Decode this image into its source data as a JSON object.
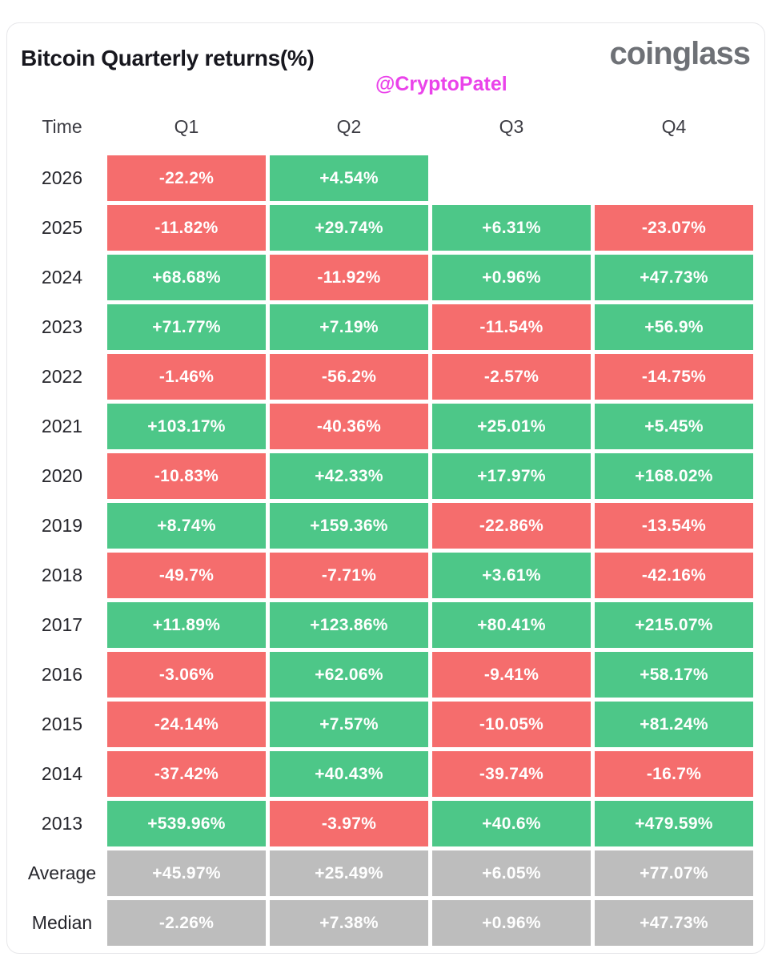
{
  "header": {
    "title": "Bitcoin Quarterly returns(%)",
    "handle": "@CryptoPatel",
    "logo": "coinglass"
  },
  "colors": {
    "positive": "#4dc788",
    "negative": "#f56d6d",
    "neutral": "#bdbdbd",
    "handle": "#ea43ea",
    "logo": "#6e7176"
  },
  "table": {
    "columns": [
      "Time",
      "Q1",
      "Q2",
      "Q3",
      "Q4"
    ],
    "rows": [
      {
        "label": "2026",
        "cells": [
          {
            "value": "-22.2%",
            "tone": "negative"
          },
          {
            "value": "+4.54%",
            "tone": "positive"
          },
          null,
          null
        ]
      },
      {
        "label": "2025",
        "cells": [
          {
            "value": "-11.82%",
            "tone": "negative"
          },
          {
            "value": "+29.74%",
            "tone": "positive"
          },
          {
            "value": "+6.31%",
            "tone": "positive"
          },
          {
            "value": "-23.07%",
            "tone": "negative"
          }
        ]
      },
      {
        "label": "2024",
        "cells": [
          {
            "value": "+68.68%",
            "tone": "positive"
          },
          {
            "value": "-11.92%",
            "tone": "negative"
          },
          {
            "value": "+0.96%",
            "tone": "positive"
          },
          {
            "value": "+47.73%",
            "tone": "positive"
          }
        ]
      },
      {
        "label": "2023",
        "cells": [
          {
            "value": "+71.77%",
            "tone": "positive"
          },
          {
            "value": "+7.19%",
            "tone": "positive"
          },
          {
            "value": "-11.54%",
            "tone": "negative"
          },
          {
            "value": "+56.9%",
            "tone": "positive"
          }
        ]
      },
      {
        "label": "2022",
        "cells": [
          {
            "value": "-1.46%",
            "tone": "negative"
          },
          {
            "value": "-56.2%",
            "tone": "negative"
          },
          {
            "value": "-2.57%",
            "tone": "negative"
          },
          {
            "value": "-14.75%",
            "tone": "negative"
          }
        ]
      },
      {
        "label": "2021",
        "cells": [
          {
            "value": "+103.17%",
            "tone": "positive"
          },
          {
            "value": "-40.36%",
            "tone": "negative"
          },
          {
            "value": "+25.01%",
            "tone": "positive"
          },
          {
            "value": "+5.45%",
            "tone": "positive"
          }
        ]
      },
      {
        "label": "2020",
        "cells": [
          {
            "value": "-10.83%",
            "tone": "negative"
          },
          {
            "value": "+42.33%",
            "tone": "positive"
          },
          {
            "value": "+17.97%",
            "tone": "positive"
          },
          {
            "value": "+168.02%",
            "tone": "positive"
          }
        ]
      },
      {
        "label": "2019",
        "cells": [
          {
            "value": "+8.74%",
            "tone": "positive"
          },
          {
            "value": "+159.36%",
            "tone": "positive"
          },
          {
            "value": "-22.86%",
            "tone": "negative"
          },
          {
            "value": "-13.54%",
            "tone": "negative"
          }
        ]
      },
      {
        "label": "2018",
        "cells": [
          {
            "value": "-49.7%",
            "tone": "negative"
          },
          {
            "value": "-7.71%",
            "tone": "negative"
          },
          {
            "value": "+3.61%",
            "tone": "positive"
          },
          {
            "value": "-42.16%",
            "tone": "negative"
          }
        ]
      },
      {
        "label": "2017",
        "cells": [
          {
            "value": "+11.89%",
            "tone": "positive"
          },
          {
            "value": "+123.86%",
            "tone": "positive"
          },
          {
            "value": "+80.41%",
            "tone": "positive"
          },
          {
            "value": "+215.07%",
            "tone": "positive"
          }
        ]
      },
      {
        "label": "2016",
        "cells": [
          {
            "value": "-3.06%",
            "tone": "negative"
          },
          {
            "value": "+62.06%",
            "tone": "positive"
          },
          {
            "value": "-9.41%",
            "tone": "negative"
          },
          {
            "value": "+58.17%",
            "tone": "positive"
          }
        ]
      },
      {
        "label": "2015",
        "cells": [
          {
            "value": "-24.14%",
            "tone": "negative"
          },
          {
            "value": "+7.57%",
            "tone": "positive"
          },
          {
            "value": "-10.05%",
            "tone": "negative"
          },
          {
            "value": "+81.24%",
            "tone": "positive"
          }
        ]
      },
      {
        "label": "2014",
        "cells": [
          {
            "value": "-37.42%",
            "tone": "negative"
          },
          {
            "value": "+40.43%",
            "tone": "positive"
          },
          {
            "value": "-39.74%",
            "tone": "negative"
          },
          {
            "value": "-16.7%",
            "tone": "negative"
          }
        ]
      },
      {
        "label": "2013",
        "cells": [
          {
            "value": "+539.96%",
            "tone": "positive"
          },
          {
            "value": "-3.97%",
            "tone": "negative"
          },
          {
            "value": "+40.6%",
            "tone": "positive"
          },
          {
            "value": "+479.59%",
            "tone": "positive"
          }
        ]
      },
      {
        "label": "Average",
        "cells": [
          {
            "value": "+45.97%",
            "tone": "neutral"
          },
          {
            "value": "+25.49%",
            "tone": "neutral"
          },
          {
            "value": "+6.05%",
            "tone": "neutral"
          },
          {
            "value": "+77.07%",
            "tone": "neutral"
          }
        ]
      },
      {
        "label": "Median",
        "cells": [
          {
            "value": "-2.26%",
            "tone": "neutral"
          },
          {
            "value": "+7.38%",
            "tone": "neutral"
          },
          {
            "value": "+0.96%",
            "tone": "neutral"
          },
          {
            "value": "+47.73%",
            "tone": "neutral"
          }
        ]
      }
    ]
  },
  "chart_data": {
    "type": "heatmap",
    "title": "Bitcoin Quarterly returns(%)",
    "columns": [
      "Q1",
      "Q2",
      "Q3",
      "Q4"
    ],
    "rows": [
      "2026",
      "2025",
      "2024",
      "2023",
      "2022",
      "2021",
      "2020",
      "2019",
      "2018",
      "2017",
      "2016",
      "2015",
      "2014",
      "2013",
      "Average",
      "Median"
    ],
    "values": [
      [
        -22.2,
        4.54,
        null,
        null
      ],
      [
        -11.82,
        29.74,
        6.31,
        -23.07
      ],
      [
        68.68,
        -11.92,
        0.96,
        47.73
      ],
      [
        71.77,
        7.19,
        -11.54,
        56.9
      ],
      [
        -1.46,
        -56.2,
        -2.57,
        -14.75
      ],
      [
        103.17,
        -40.36,
        25.01,
        5.45
      ],
      [
        -10.83,
        42.33,
        17.97,
        168.02
      ],
      [
        8.74,
        159.36,
        -22.86,
        -13.54
      ],
      [
        -49.7,
        -7.71,
        3.61,
        -42.16
      ],
      [
        11.89,
        123.86,
        80.41,
        215.07
      ],
      [
        -3.06,
        62.06,
        -9.41,
        58.17
      ],
      [
        -24.14,
        7.57,
        -10.05,
        81.24
      ],
      [
        -37.42,
        40.43,
        -39.74,
        -16.7
      ],
      [
        539.96,
        -3.97,
        40.6,
        479.59
      ],
      [
        45.97,
        25.49,
        6.05,
        77.07
      ],
      [
        -2.26,
        7.38,
        0.96,
        47.73
      ]
    ],
    "color_coding": "green = positive return, red = negative return, gray = summary rows (Average/Median)",
    "legend_position": "none",
    "grid": false
  }
}
